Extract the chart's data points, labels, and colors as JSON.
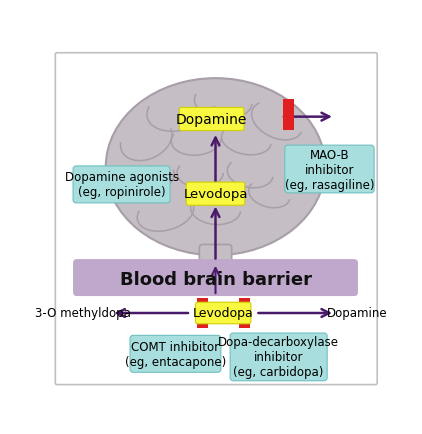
{
  "bg_color": "#ffffff",
  "border_color": "#c0c0c0",
  "brain_color": "#c5bec5",
  "brain_outline": "#a89ea8",
  "bbb_color": "#c0a8cc",
  "bbb_text": "Blood brain barrier",
  "bbb_text_color": "#111111",
  "arrow_color": "#4a1a6a",
  "red_block_color": "#e02020",
  "yellow_box_color": "#f8f840",
  "yellow_box_border": "#d0d000",
  "cyan_box_color": "#a8dede",
  "cyan_box_border": "#70c0c0",
  "labels": {
    "dopamine_brain": "Dopamine",
    "levodopa_brain": "Levodopa",
    "dopamine_agonists": "Dopamine agonists\n(eg, ropinirole)",
    "maob": "MAO-B\ninhibitor\n(eg, rasagiline)",
    "levodopa_blood": "Levodopa",
    "dopamine_blood": "Dopamine",
    "methyldopa": "3-O methyldopa",
    "comt": "COMT inhibitor\n(eg, entacapone)",
    "dopa_decarb": "Dopa-decarboxylase\ninhibitor\n(eg, carbidopa)"
  },
  "brain_gyri": [
    [
      165,
      75,
      90,
      55,
      -15,
      10,
      200
    ],
    [
      220,
      65,
      75,
      45,
      5,
      0,
      190
    ],
    [
      290,
      90,
      70,
      45,
      25,
      0,
      200
    ],
    [
      120,
      115,
      70,
      50,
      -25,
      0,
      200
    ],
    [
      185,
      115,
      65,
      40,
      -5,
      0,
      200
    ],
    [
      250,
      115,
      65,
      38,
      10,
      0,
      195
    ],
    [
      125,
      165,
      65,
      42,
      -20,
      0,
      200
    ],
    [
      190,
      158,
      60,
      38,
      0,
      0,
      200
    ],
    [
      255,
      158,
      60,
      38,
      10,
      0,
      200
    ],
    [
      145,
      210,
      75,
      45,
      -15,
      0,
      200
    ],
    [
      210,
      205,
      65,
      40,
      5,
      0,
      200
    ],
    [
      280,
      185,
      55,
      35,
      15,
      0,
      195
    ]
  ]
}
